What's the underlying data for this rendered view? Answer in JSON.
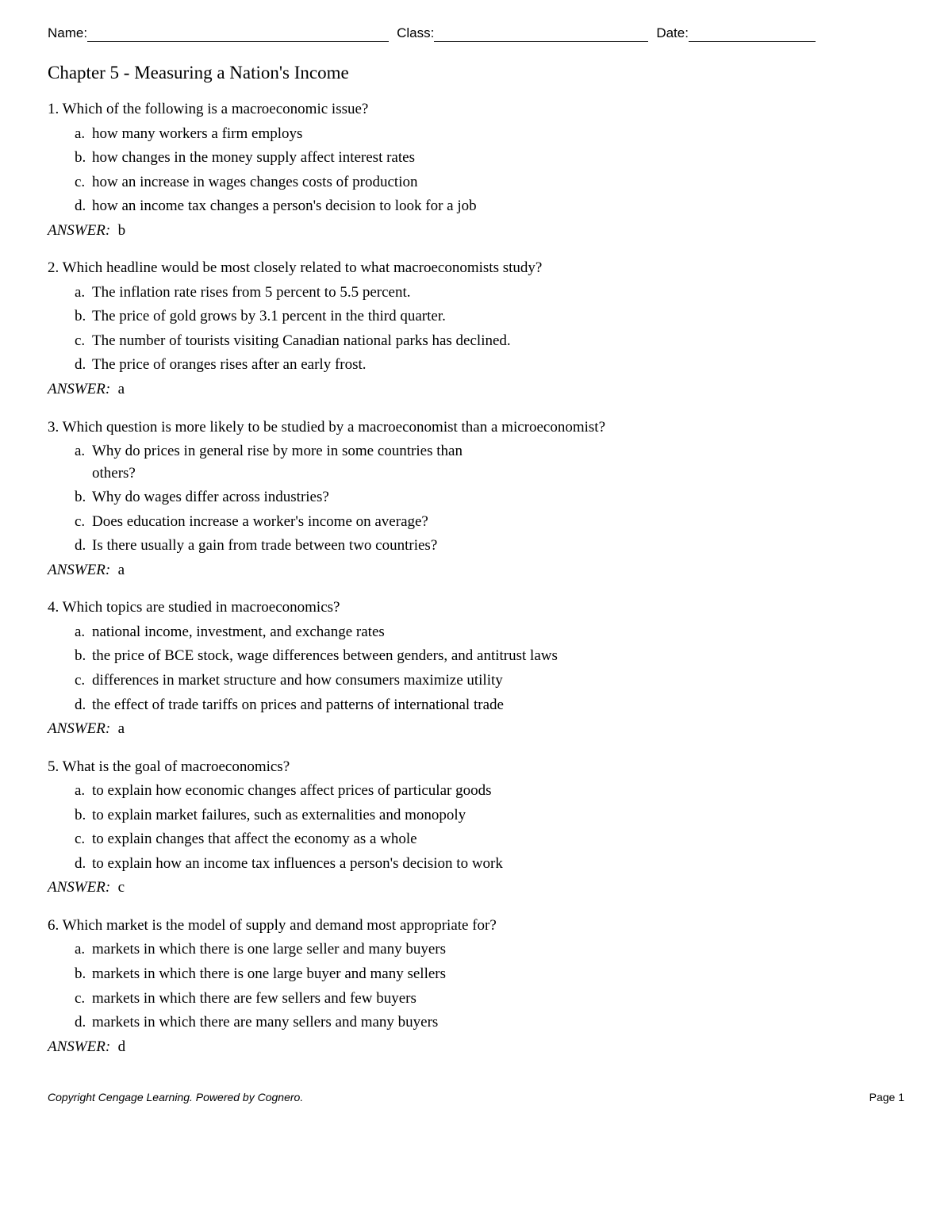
{
  "header": {
    "name_label": "Name:",
    "class_label": "Class:",
    "date_label": "Date:"
  },
  "title": "Chapter 5 - Measuring a Nation's Income",
  "answer_label": "ANSWER:",
  "questions": [
    {
      "num": "1",
      "stem": "Which of the following is a macroeconomic issue?",
      "options": [
        {
          "letter": "a",
          "text": "how many workers a firm employs"
        },
        {
          "letter": "b",
          "text": "how changes in the money supply affect interest rates"
        },
        {
          "letter": "c",
          "text": "how an increase in wages changes costs of production"
        },
        {
          "letter": "d",
          "text": "how an income tax changes a person's decision to look for a job"
        }
      ],
      "answer": "b"
    },
    {
      "num": "2",
      "stem": "Which headline would be most closely related to what macroeconomists study?",
      "options": [
        {
          "letter": "a",
          "text": "The inflation rate rises from 5 percent to 5.5 percent."
        },
        {
          "letter": "b",
          "text": "The price of gold grows by 3.1 percent in the third quarter."
        },
        {
          "letter": "c",
          "text": "The number of tourists visiting Canadian national parks has declined."
        },
        {
          "letter": "d",
          "text": "The price of oranges rises after an early frost."
        }
      ],
      "answer": "a"
    },
    {
      "num": "3",
      "stem": "Which question is more likely to be studied by a macroeconomist than a microeconomist?",
      "options": [
        {
          "letter": "a",
          "text": "Why do prices in general rise by more in some countries than others?",
          "narrow": true
        },
        {
          "letter": "b",
          "text": "Why do wages differ across industries?"
        },
        {
          "letter": "c",
          "text": "Does education increase a worker's income on average?"
        },
        {
          "letter": "d",
          "text": "Is there usually a gain from trade between two countries?"
        }
      ],
      "answer": "a"
    },
    {
      "num": "4",
      "stem": "Which topics are studied in macroeconomics?",
      "options": [
        {
          "letter": "a",
          "text": "national income, investment, and exchange rates"
        },
        {
          "letter": "b",
          "text": "the price of BCE stock, wage differences between genders, and antitrust laws"
        },
        {
          "letter": "c",
          "text": "differences in market structure and how consumers maximize utility"
        },
        {
          "letter": "d",
          "text": "the effect of trade tariffs on prices and patterns of international trade"
        }
      ],
      "answer": "a"
    },
    {
      "num": "5",
      "stem": "What is the goal of macroeconomics?",
      "options": [
        {
          "letter": "a",
          "text": "to explain how economic changes affect prices of particular goods"
        },
        {
          "letter": "b",
          "text": "to explain market failures, such as externalities and monopoly"
        },
        {
          "letter": "c",
          "text": "to explain changes that affect the economy as a whole"
        },
        {
          "letter": "d",
          "text": "to explain how an income tax influences a person's decision to work"
        }
      ],
      "answer": "c"
    },
    {
      "num": "6",
      "stem": "Which market is the model of supply and demand most appropriate for?",
      "options": [
        {
          "letter": "a",
          "text": "markets in which there is one large seller and many buyers"
        },
        {
          "letter": "b",
          "text": "markets in which there is one large buyer and many sellers"
        },
        {
          "letter": "c",
          "text": "markets in which there are few sellers and few buyers"
        },
        {
          "letter": "d",
          "text": "markets in which there are many sellers and many buyers"
        }
      ],
      "answer": "d"
    }
  ],
  "footer": {
    "copyright": "Copyright Cengage Learning. Powered by Cognero.",
    "page": "Page 1"
  },
  "layout": {
    "name_line_width": 380,
    "class_line_width": 270,
    "date_line_width": 160,
    "narrow_option_max_width": 520
  }
}
